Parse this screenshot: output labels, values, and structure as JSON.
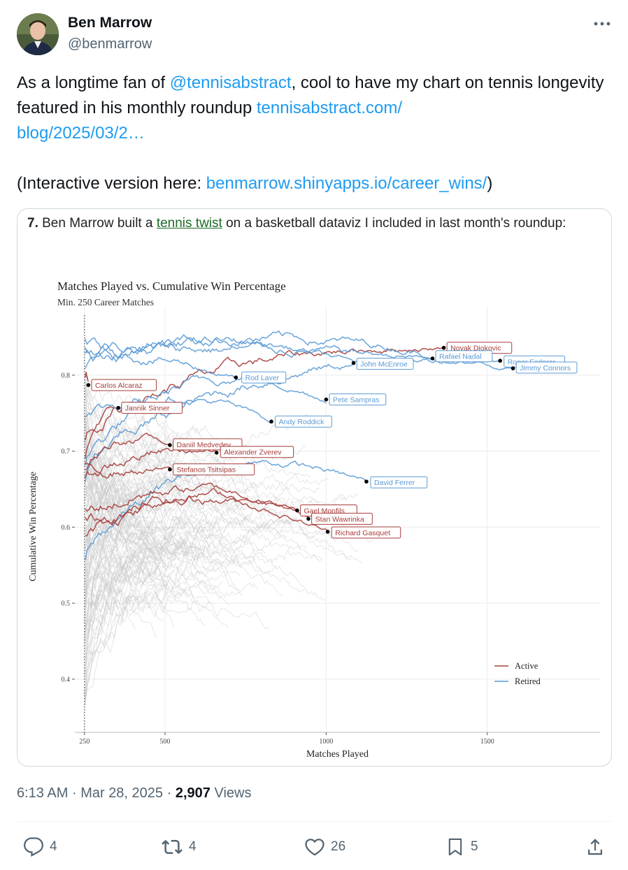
{
  "author": {
    "name": "Ben Marrow",
    "handle": "@benmarrow"
  },
  "tweet": {
    "text_pre": "As a longtime fan of ",
    "mention": "@tennisabstract",
    "text_mid": ", cool to have my chart on tennis longevity featured in his monthly roundup ",
    "link1_line1": "tennisabstract.com/",
    "link1_line2": "blog/2025/03/2…",
    "text_interactive_pre": "(Interactive version here: ",
    "link2": "benmarrow.shinyapps.io/career_wins/",
    "text_interactive_post": ")"
  },
  "card": {
    "number": "7.",
    "caption_pre": " Ben Marrow built a ",
    "caption_link": "tennis twist",
    "caption_post": " on a basketball dataviz I included in last month's roundup:"
  },
  "chart_data": {
    "type": "line",
    "title": "Matches Played vs. Cumulative Win Percentage",
    "subtitle": "Min. 250 Career Matches",
    "xlabel": "Matches Played",
    "ylabel": "Cumulative Win Percentage",
    "xlim": [
      220,
      1850
    ],
    "ylim": [
      0.33,
      0.89
    ],
    "xticks": [
      250,
      500,
      1000,
      1500
    ],
    "yticks": [
      0.4,
      0.5,
      0.6,
      0.7,
      0.8
    ],
    "vline_x": 250,
    "grid": true,
    "legend": {
      "placement": "bottom-right",
      "entries": [
        {
          "label": "Active",
          "color": "#a63d3a"
        },
        {
          "label": "Retired",
          "color": "#5b9bd5"
        }
      ]
    },
    "players": [
      {
        "name": "Novak Djokovic",
        "status": "active",
        "end": [
          1365,
          0.836
        ]
      },
      {
        "name": "Rafael Nadal",
        "status": "retired",
        "end": [
          1330,
          0.822
        ]
      },
      {
        "name": "Roger Federer",
        "status": "retired",
        "end": [
          1540,
          0.819
        ]
      },
      {
        "name": "Jimmy Connors",
        "status": "retired",
        "end": [
          1580,
          0.809
        ]
      },
      {
        "name": "John McEnroe",
        "status": "retired",
        "end": [
          1085,
          0.816
        ]
      },
      {
        "name": "Rod Laver",
        "status": "retired",
        "end": [
          720,
          0.797
        ]
      },
      {
        "name": "Carlos Alcaraz",
        "status": "active",
        "end": [
          262,
          0.787
        ]
      },
      {
        "name": "Jannik Sinner",
        "status": "active",
        "end": [
          355,
          0.757
        ]
      },
      {
        "name": "Pete Sampras",
        "status": "retired",
        "end": [
          1000,
          0.768
        ]
      },
      {
        "name": "Andy Roddick",
        "status": "retired",
        "end": [
          830,
          0.739
        ]
      },
      {
        "name": "Daniil Medvedev",
        "status": "active",
        "end": [
          515,
          0.708
        ]
      },
      {
        "name": "Alexander Zverev",
        "status": "active",
        "end": [
          660,
          0.698
        ]
      },
      {
        "name": "Stefanos Tsitsipas",
        "status": "active",
        "end": [
          515,
          0.676
        ]
      },
      {
        "name": "David Ferrer",
        "status": "retired",
        "end": [
          1125,
          0.66
        ]
      },
      {
        "name": "Gael Monfils",
        "status": "active",
        "end": [
          910,
          0.622
        ]
      },
      {
        "name": "Stan Wawrinka",
        "status": "active",
        "end": [
          945,
          0.611
        ]
      },
      {
        "name": "Richard Gasquet",
        "status": "active",
        "end": [
          1005,
          0.594
        ]
      }
    ]
  },
  "meta": {
    "time": "6:13 AM",
    "sep": "·",
    "date": "Mar 28, 2025",
    "views_count": "2,907",
    "views_label": "Views"
  },
  "actions": {
    "replies": "4",
    "reposts": "4",
    "likes": "26",
    "bookmarks": "5"
  },
  "colors": {
    "link": "#1d9bf0",
    "active": "#a63d3a",
    "retired": "#5b9bd5",
    "muted": "#536471"
  }
}
